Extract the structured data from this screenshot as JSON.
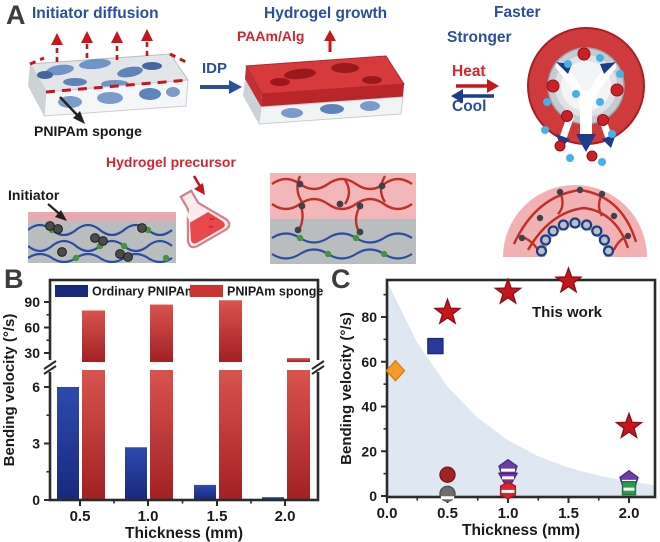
{
  "panels": {
    "a": "A",
    "b": "B",
    "c": "C"
  },
  "panel_a": {
    "initiator_diffusion": "Initiator diffusion",
    "hydrogel_growth": "Hydrogel growth",
    "paam_alg": "PAAm/Alg",
    "idp": "IDP",
    "pnipam_sponge": "PNIPAm sponge",
    "faster": "Faster",
    "stronger": "Stronger",
    "heat": "Heat",
    "cool": "Cool",
    "initiator": "Initiator",
    "hydrogel_precursor": "Hydrogel precursor"
  },
  "colors": {
    "blue_label": "#2b4ea0",
    "red_label": "#d6252b",
    "bar_blue": "#20399b",
    "bar_red": "#c8302e",
    "shade": "#dee7f2",
    "axis": "#2b2b2b"
  },
  "chart_data": [
    {
      "panel": "B",
      "type": "bar",
      "title": "",
      "xlabel": "Thickness (mm)",
      "ylabel": "Bending velocity (°/s)",
      "categories": [
        "0.5",
        "1.0",
        "1.5",
        "2.0"
      ],
      "series": [
        {
          "name": "Ordinary PNIPAm",
          "color_top": "#2e4aae",
          "color_bottom": "#17297e",
          "values": [
            6.0,
            2.8,
            0.8,
            0.15
          ]
        },
        {
          "name": "PNIPAm sponge",
          "color_top": "#d9534f",
          "color_bottom": "#a32023",
          "values": [
            80,
            87,
            92,
            24
          ]
        }
      ],
      "y_axis_break": {
        "lower_ticks": [
          0,
          3,
          6
        ],
        "lower_minor_ticks": [
          1.5,
          4.5
        ],
        "upper_ticks": [
          30,
          60,
          90
        ],
        "upper_minor_ticks": [
          45,
          75
        ]
      },
      "legend_position": "top-inside",
      "grid": false
    },
    {
      "panel": "C",
      "type": "scatter",
      "title": "",
      "xlabel": "Thickness (mm)",
      "ylabel": "Bending velocity (°/s)",
      "xlim": [
        0,
        2.21
      ],
      "ylim": [
        0,
        96.5
      ],
      "xticks": [
        "0.0",
        "0.5",
        "1.0",
        "1.5",
        "2.0"
      ],
      "yticks": [
        0,
        20,
        40,
        60,
        80
      ],
      "annotation": "This work",
      "shaded_region": {
        "color": "#dee7f2",
        "description": "exponential-decay envelope filled to x-axis",
        "curve_points": [
          [
            0,
            96
          ],
          [
            0.25,
            68.5
          ],
          [
            0.5,
            48.9
          ],
          [
            0.75,
            34.9
          ],
          [
            1.0,
            24.9
          ],
          [
            1.25,
            17.8
          ],
          [
            1.5,
            12.7
          ],
          [
            1.75,
            9.1
          ],
          [
            2.0,
            6.5
          ],
          [
            2.21,
            4.9
          ]
        ]
      },
      "series": [
        {
          "name": "Reference (gray half circle)",
          "marker": "circle",
          "half": true,
          "color": "#6b6f72",
          "edge": "#4d5154",
          "points": [
            [
              0.5,
              1
            ]
          ]
        },
        {
          "name": "Reference (dark red circle)",
          "marker": "circle",
          "color": "#9e2428",
          "edge": "#7a181c",
          "points": [
            [
              0.5,
              9.5
            ]
          ]
        },
        {
          "name": "Reference (orange diamond)",
          "marker": "diamond",
          "color": "#f59b29",
          "edge": "#d97f13",
          "points": [
            [
              0.07,
              56
            ]
          ]
        },
        {
          "name": "Reference (blue square)",
          "marker": "square",
          "color": "#28389b",
          "edge": "#1b2a75",
          "points": [
            [
              0.4,
              67
            ]
          ]
        },
        {
          "name": "Reference (purple half pentagon)",
          "marker": "pentagon",
          "half": true,
          "color": "#6a3da8",
          "edge": "#4f2b85",
          "points": [
            [
              1.0,
              12
            ],
            [
              2.0,
              7
            ]
          ]
        },
        {
          "name": "Reference (purple down triangle)",
          "marker": "triangle-down",
          "half": true,
          "color": "#7232a8",
          "edge": "#53217e",
          "points": [
            [
              1.0,
              7
            ]
          ]
        },
        {
          "name": "Reference (red half hexagon)",
          "marker": "hexagon",
          "half": true,
          "color": "#d6252b",
          "edge": "#a81b20",
          "points": [
            [
              1.0,
              2.5
            ]
          ]
        },
        {
          "name": "Reference (green half square)",
          "marker": "square",
          "half": true,
          "color": "#2a9d4e",
          "edge": "#1d7a3a",
          "points": [
            [
              2.0,
              3.5
            ]
          ]
        },
        {
          "name": "This work",
          "marker": "star",
          "color": "#c4161c",
          "edge": "#8e0f14",
          "points": [
            [
              0.5,
              82
            ],
            [
              1.0,
              91
            ],
            [
              1.5,
              96
            ],
            [
              2.0,
              31
            ]
          ]
        }
      ],
      "grid": false
    }
  ]
}
